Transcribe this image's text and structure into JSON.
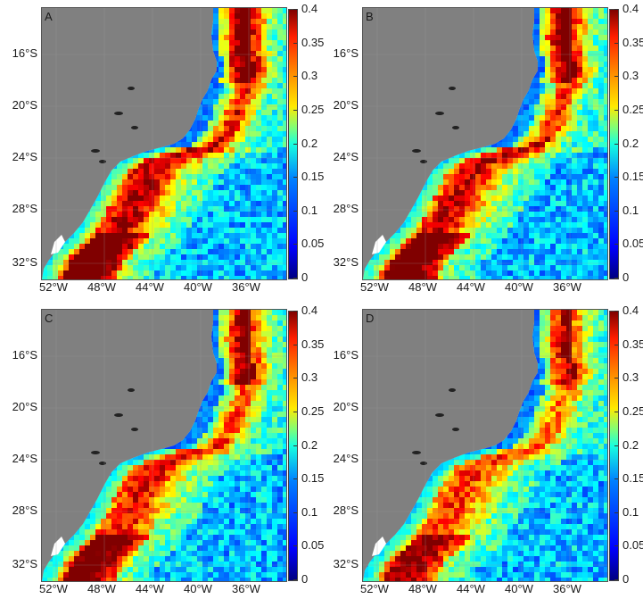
{
  "panels": [
    {
      "label": "A"
    },
    {
      "label": "B"
    },
    {
      "label": "C"
    },
    {
      "label": "D"
    }
  ],
  "lat_ticks": [
    "16°S",
    "20°S",
    "24°S",
    "28°S",
    "32°S"
  ],
  "lon_ticks": [
    "52°W",
    "48°W",
    "44°W",
    "40°W",
    "36°W"
  ],
  "colorbar": {
    "ticks": [
      "0.4",
      "0.35",
      "0.3",
      "0.25",
      "0.2",
      "0.15",
      "0.1",
      "0.05",
      "0"
    ],
    "min": 0,
    "max": 0.4,
    "colormap": "jet"
  },
  "colors": {
    "land": "#808080",
    "ocean_background": "#5fd0f5",
    "grid": "#9a9a9a"
  },
  "map_extent": {
    "lon_min": -53.5,
    "lon_max": -33,
    "lat_min": -33.5,
    "lat_max": -13
  }
}
